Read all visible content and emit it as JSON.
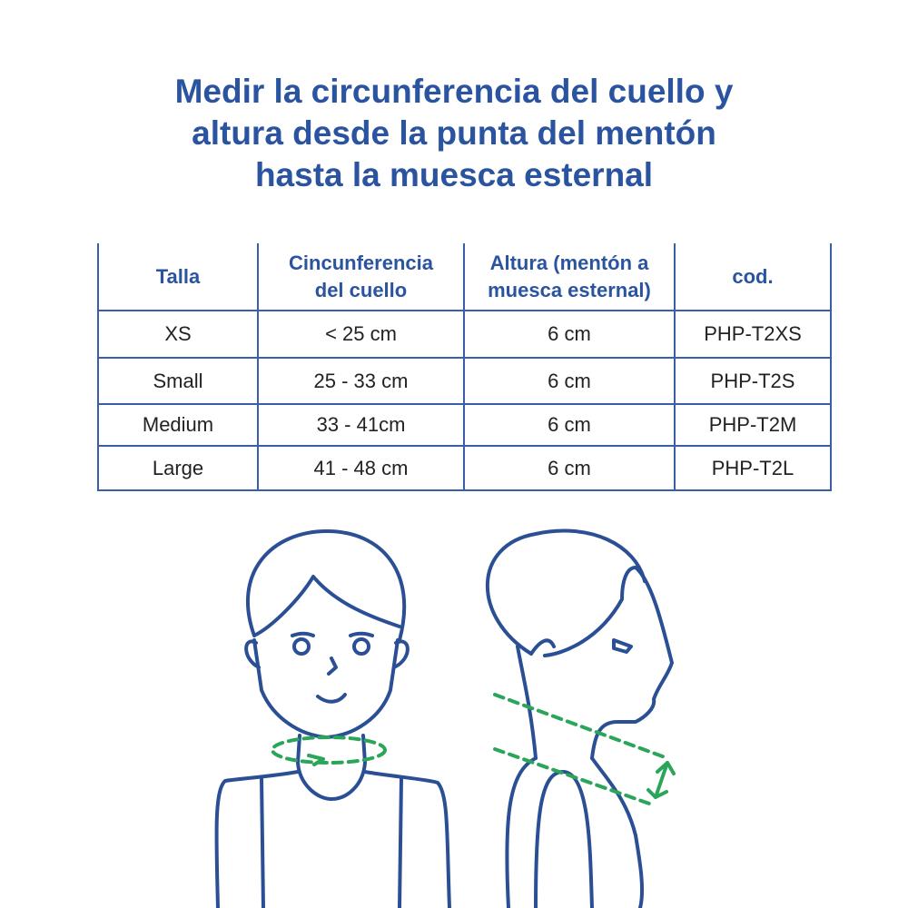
{
  "title_lines": [
    "Medir la circunferencia del cuello y",
    "altura desde la punta del mentón",
    "hasta la muesca esternal"
  ],
  "table": {
    "headers": [
      [
        "Talla",
        ""
      ],
      [
        "Cincunferencia",
        "del cuello"
      ],
      [
        "Altura (mentón a",
        "muesca esternal)"
      ],
      [
        "cod.",
        ""
      ]
    ],
    "rows": [
      [
        "XS",
        "< 25 cm",
        "6 cm",
        "PHP-T2XS"
      ],
      [
        "Small",
        "25 - 33 cm",
        "6 cm",
        "PHP-T2S"
      ],
      [
        "Medium",
        "33 - 41cm",
        "6 cm",
        "PHP-T2M"
      ],
      [
        "Large",
        "41 - 48 cm",
        "6 cm",
        "PHP-T2L"
      ]
    ]
  },
  "colors": {
    "primary": "#2b54a0",
    "measure": "#2aa55a"
  }
}
